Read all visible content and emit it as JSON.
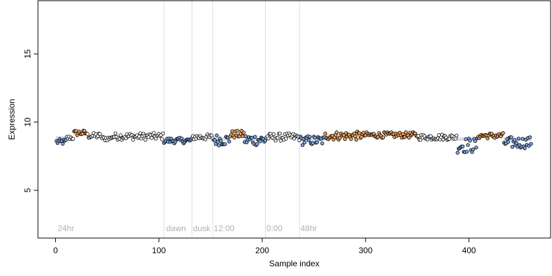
{
  "chart_data": {
    "type": "scatter",
    "title": "",
    "xlabel": "Sample index",
    "ylabel": "Expression",
    "xlim": [
      -17,
      479
    ],
    "ylim": [
      1.5,
      18.9
    ],
    "xticks": [
      0,
      100,
      200,
      300,
      400
    ],
    "yticks": [
      5,
      10,
      15
    ],
    "vlines": [
      105,
      132,
      152,
      203,
      236
    ],
    "annotations": [
      {
        "x": 2,
        "text": "24hr"
      },
      {
        "x": 107,
        "text": "dawn"
      },
      {
        "x": 133,
        "text": "dusk"
      },
      {
        "x": 153,
        "text": "12:00"
      },
      {
        "x": 204,
        "text": "0:00"
      },
      {
        "x": 237,
        "text": "48hr"
      }
    ],
    "annotation_y": 2.0,
    "colors": {
      "orange": "#f0a860",
      "blue": "#7fa8e8",
      "plain": "#ffffff",
      "band": "#a9c0dd",
      "vline": "#dddddd"
    },
    "segments": [
      {
        "x_start": 1,
        "x_end": 10,
        "base": 8.55,
        "amp": 0.15,
        "color": "blue",
        "band": 8.85
      },
      {
        "x_start": 11,
        "x_end": 17,
        "base": 8.85,
        "amp": 0.1,
        "color": "plain",
        "band": null
      },
      {
        "x_start": 18,
        "x_end": 30,
        "base": 9.2,
        "amp": 0.15,
        "color": "orange",
        "band": 9.15
      },
      {
        "x_start": 31,
        "x_end": 44,
        "base": 9.0,
        "amp": 0.15,
        "color": "plain",
        "band": null
      },
      {
        "x_start": 45,
        "x_end": 53,
        "base": 8.8,
        "amp": 0.12,
        "color": "plain",
        "band": null
      },
      {
        "x_start": 54,
        "x_end": 104,
        "base": 8.95,
        "amp": 0.18,
        "color": "plain",
        "band": null
      },
      {
        "x_start": 105,
        "x_end": 132,
        "base": 8.65,
        "amp": 0.15,
        "color": "blue",
        "band": 8.7
      },
      {
        "x_start": 133,
        "x_end": 152,
        "base": 8.9,
        "amp": 0.15,
        "color": "plain",
        "band": null
      },
      {
        "x_start": 153,
        "x_end": 168,
        "base": 8.7,
        "amp": 0.3,
        "color": "blue",
        "band": 8.75
      },
      {
        "x_start": 169,
        "x_end": 182,
        "base": 9.1,
        "amp": 0.2,
        "color": "orange",
        "band": 9.05
      },
      {
        "x_start": 183,
        "x_end": 203,
        "base": 8.7,
        "amp": 0.3,
        "color": "blue",
        "band": 8.75
      },
      {
        "x_start": 204,
        "x_end": 236,
        "base": 8.9,
        "amp": 0.2,
        "color": "plain",
        "band": null
      },
      {
        "x_start": 237,
        "x_end": 260,
        "base": 8.65,
        "amp": 0.25,
        "color": "blue",
        "band": 8.7
      },
      {
        "x_start": 261,
        "x_end": 295,
        "base": 9.0,
        "amp": 0.22,
        "color": "orange",
        "band": 9.0
      },
      {
        "x_start": 296,
        "x_end": 350,
        "base": 9.05,
        "amp": 0.15,
        "color": "orange",
        "band": null
      },
      {
        "x_start": 351,
        "x_end": 388,
        "base": 8.9,
        "amp": 0.15,
        "color": "plain",
        "band": null
      },
      {
        "x_start": 389,
        "x_end": 408,
        "base": 8.3,
        "amp": 0.4,
        "color": "blue",
        "band": 8.75
      },
      {
        "x_start": 409,
        "x_end": 433,
        "base": 9.0,
        "amp": 0.15,
        "color": "orange",
        "band": 9.05
      },
      {
        "x_start": 434,
        "x_end": 460,
        "base": 8.5,
        "amp": 0.3,
        "color": "blue",
        "band": 8.75
      }
    ]
  }
}
